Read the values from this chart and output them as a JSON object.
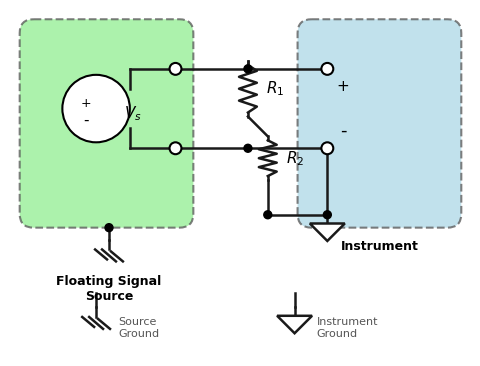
{
  "bg_color": "#ffffff",
  "green_color": "#90ee90",
  "blue_color": "#add8e6",
  "border_color": "#555555",
  "title_green": "Floating Signal\nSource",
  "title_blue": "Instrument",
  "label_source_ground": "Source\nGround",
  "label_instrument_ground": "Instrument\nGround",
  "label_R1": "R",
  "label_R2": "R",
  "label_Vs": "V",
  "line_color": "#1a1a1a"
}
